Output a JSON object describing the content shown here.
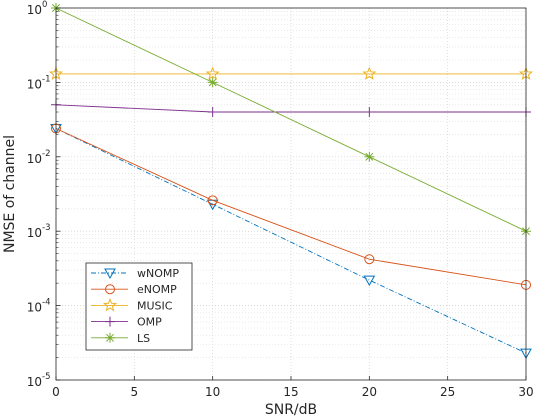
{
  "chart_data": {
    "type": "line",
    "title": "",
    "xlabel": "SNR/dB",
    "ylabel": "NMSE of channel",
    "xlim": [
      0,
      30
    ],
    "ylim": [
      1e-05,
      1
    ],
    "yscale": "log",
    "grid": true,
    "legend_position": "bottom-left",
    "x_ticks": [
      {
        "value": 0,
        "label": "0"
      },
      {
        "value": 5,
        "label": "5"
      },
      {
        "value": 10,
        "label": "10"
      },
      {
        "value": 15,
        "label": "15"
      },
      {
        "value": 20,
        "label": "20"
      },
      {
        "value": 25,
        "label": "25"
      },
      {
        "value": 30,
        "label": "30"
      }
    ],
    "y_ticks": [
      {
        "value": 1,
        "base": "10",
        "exp": "0"
      },
      {
        "value": 0.1,
        "base": "10",
        "exp": "-1"
      },
      {
        "value": 0.01,
        "base": "10",
        "exp": "-2"
      },
      {
        "value": 0.001,
        "base": "10",
        "exp": "-3"
      },
      {
        "value": 0.0001,
        "base": "10",
        "exp": "-4"
      },
      {
        "value": 1e-05,
        "base": "10",
        "exp": "-5"
      }
    ],
    "x": [
      0,
      10,
      20,
      30
    ],
    "series": [
      {
        "name": "wNOMP",
        "color": "#0072bd",
        "marker": "triangle-down",
        "dash": "dashdot",
        "values": [
          0.024,
          0.0023,
          0.00022,
          2.3e-05
        ]
      },
      {
        "name": "eNOMP",
        "color": "#d95319",
        "marker": "circle",
        "dash": "solid",
        "values": [
          0.024,
          0.0026,
          0.00042,
          0.00019
        ]
      },
      {
        "name": "MUSIC",
        "color": "#edb120",
        "marker": "star",
        "dash": "solid",
        "values": [
          0.13,
          0.13,
          0.13,
          0.13
        ]
      },
      {
        "name": "OMP",
        "color": "#7e2f8e",
        "marker": "plus",
        "dash": "solid",
        "values": [
          0.05,
          0.04,
          0.04,
          0.04
        ]
      },
      {
        "name": "LS",
        "color": "#77ac30",
        "marker": "asterisk",
        "dash": "solid",
        "values": [
          1,
          0.1,
          0.01,
          0.001
        ]
      }
    ]
  }
}
